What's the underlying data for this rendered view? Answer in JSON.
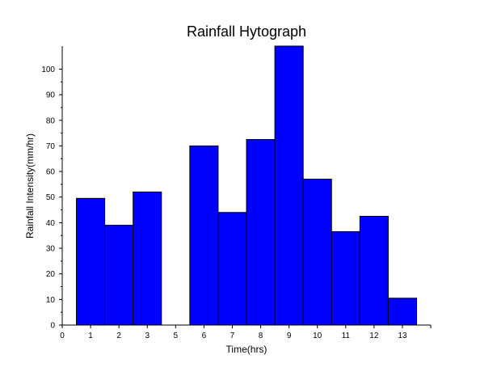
{
  "chart_data": {
    "type": "bar",
    "title": "Rainfall Hytograph",
    "xlabel": "Time(hrs)",
    "ylabel": "Rainfall Intensity(mm/hr)",
    "bar_color": "#0000ff",
    "bar_edge_color": "#000000",
    "bars": [
      {
        "x": 1,
        "value": 49.5
      },
      {
        "x": 2,
        "value": 39
      },
      {
        "x": 3,
        "value": 52
      },
      {
        "x": 5,
        "value": 70
      },
      {
        "x": 6,
        "value": 44
      },
      {
        "x": 7,
        "value": 72.5
      },
      {
        "x": 8,
        "value": 109
      },
      {
        "x": 9,
        "value": 57
      },
      {
        "x": 10,
        "value": 36.5
      },
      {
        "x": 11,
        "value": 42.5
      },
      {
        "x": 12,
        "value": 10.5
      }
    ],
    "x_tick_labels": [
      "0",
      "1",
      "2",
      "3",
      "5",
      "6",
      "7",
      "8",
      "9",
      "10",
      "11",
      "12",
      "13"
    ],
    "y_tick_labels": [
      "0",
      "10",
      "20",
      "30",
      "40",
      "50",
      "60",
      "70",
      "80",
      "90",
      "100"
    ],
    "xlim": [
      0,
      13
    ],
    "ylim": [
      0,
      109
    ],
    "grid": false,
    "legend": "none"
  }
}
